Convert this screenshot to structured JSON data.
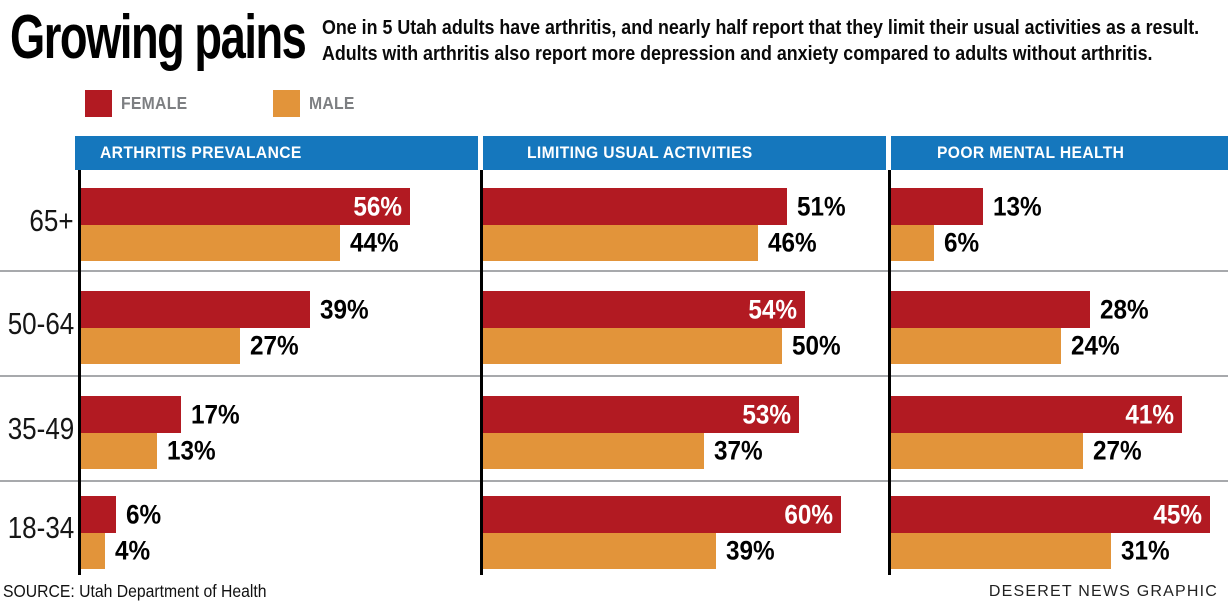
{
  "title": "Growing pains",
  "subtitle_lines": [
    "One in 5 Utah adults have arthritis, and nearly half report that they limit their usual activities as a result.",
    "Adults with arthritis also report more depression and anxiety compared to adults without arthritis."
  ],
  "legend": {
    "female_label": "FEMALE",
    "male_label": "MALE"
  },
  "colors": {
    "female": "#b21a22",
    "male": "#e2943a",
    "header_bg": "#1577bd",
    "separator": "#a7a9ac",
    "legend_text": "#7d7f82"
  },
  "footer": {
    "source": "SOURCE: Utah Department of Health",
    "credit": "DESERET NEWS GRAPHIC"
  },
  "chart_data": {
    "type": "bar",
    "orientation": "horizontal",
    "value_suffix": "%",
    "categories": [
      "65+",
      "50-64",
      "35-49",
      "18-34"
    ],
    "legend_entries": [
      "FEMALE",
      "MALE"
    ],
    "legend_position": "top-left",
    "grid": "row-separators",
    "inside_label_threshold": 0.78,
    "panels": [
      {
        "title": "ARTHRITIS PREVALANCE",
        "axis_max": 67.5,
        "series": [
          {
            "name": "Female",
            "values": [
              56,
              39,
              17,
              6
            ]
          },
          {
            "name": "Male",
            "values": [
              44,
              27,
              13,
              4
            ]
          }
        ]
      },
      {
        "title": "LIMITING USUAL ACTIVITIES",
        "axis_max": 67.5,
        "series": [
          {
            "name": "Female",
            "values": [
              51,
              54,
              53,
              60
            ]
          },
          {
            "name": "Male",
            "values": [
              46,
              50,
              37,
              39
            ]
          }
        ]
      },
      {
        "title": "POOR MENTAL HEALTH",
        "axis_max": 47.5,
        "series": [
          {
            "name": "Female",
            "values": [
              13,
              28,
              41,
              45
            ]
          },
          {
            "name": "Male",
            "values": [
              6,
              24,
              27,
              31
            ]
          }
        ]
      }
    ]
  }
}
